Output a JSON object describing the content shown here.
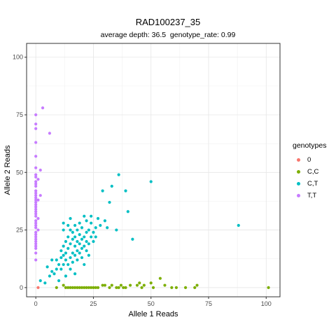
{
  "chart_data": {
    "type": "scatter",
    "title": "RAD100237_35",
    "subtitle": {
      "depth_label": "average depth:",
      "depth_value": "36.5",
      "rate_label": "genotype_rate:",
      "rate_value": "0.99"
    },
    "xlabel": "Allele 1 Reads",
    "ylabel": "Allele 2 Reads",
    "xlim": [
      -4,
      106
    ],
    "ylim": [
      -4,
      106
    ],
    "xticks": [
      0,
      25,
      50,
      75,
      100
    ],
    "yticks": [
      0,
      25,
      50,
      75,
      100
    ],
    "grid": true,
    "legend": {
      "title": "genotypes",
      "position": "right"
    },
    "series": [
      {
        "name": "0",
        "color": "#F8766D",
        "points": [
          [
            1,
            0
          ]
        ]
      },
      {
        "name": "C,C",
        "color": "#7CAE00",
        "points": [
          [
            9,
            0
          ],
          [
            12,
            1
          ],
          [
            13,
            0
          ],
          [
            14,
            0
          ],
          [
            15,
            0
          ],
          [
            16,
            0
          ],
          [
            17,
            0
          ],
          [
            18,
            0
          ],
          [
            19,
            0
          ],
          [
            20,
            0
          ],
          [
            21,
            0
          ],
          [
            22,
            0
          ],
          [
            23,
            0
          ],
          [
            24,
            0
          ],
          [
            25,
            0
          ],
          [
            26,
            0
          ],
          [
            27,
            0
          ],
          [
            29,
            1
          ],
          [
            30,
            1
          ],
          [
            32,
            0
          ],
          [
            33,
            1
          ],
          [
            35,
            0
          ],
          [
            36,
            0
          ],
          [
            37,
            1
          ],
          [
            38,
            0
          ],
          [
            39,
            0
          ],
          [
            41,
            1
          ],
          [
            44,
            1
          ],
          [
            45,
            2
          ],
          [
            46,
            0
          ],
          [
            47,
            1
          ],
          [
            50,
            2
          ],
          [
            51,
            0
          ],
          [
            54,
            4
          ],
          [
            56,
            1
          ],
          [
            59,
            0
          ],
          [
            61,
            0
          ],
          [
            65,
            0
          ],
          [
            69,
            0
          ],
          [
            70,
            1
          ],
          [
            101,
            0
          ]
        ]
      },
      {
        "name": "C,T",
        "color": "#00BFC4",
        "points": [
          [
            2,
            3
          ],
          [
            4,
            2
          ],
          [
            5,
            9
          ],
          [
            6,
            5
          ],
          [
            7,
            7
          ],
          [
            7,
            12
          ],
          [
            8,
            6
          ],
          [
            9,
            8
          ],
          [
            9,
            12
          ],
          [
            10,
            10
          ],
          [
            10,
            3
          ],
          [
            11,
            8
          ],
          [
            11,
            13
          ],
          [
            11,
            16
          ],
          [
            12,
            10
          ],
          [
            12,
            14
          ],
          [
            12,
            18
          ],
          [
            12,
            25
          ],
          [
            12,
            28
          ],
          [
            13,
            12
          ],
          [
            13,
            15
          ],
          [
            13,
            20
          ],
          [
            13,
            5
          ],
          [
            14,
            10
          ],
          [
            14,
            17
          ],
          [
            14,
            22
          ],
          [
            14,
            27
          ],
          [
            15,
            8
          ],
          [
            15,
            13
          ],
          [
            15,
            19
          ],
          [
            15,
            25
          ],
          [
            15,
            30
          ],
          [
            16,
            11
          ],
          [
            16,
            15
          ],
          [
            16,
            21
          ],
          [
            16,
            24
          ],
          [
            17,
            14
          ],
          [
            17,
            18
          ],
          [
            17,
            22
          ],
          [
            17,
            27
          ],
          [
            17,
            6
          ],
          [
            18,
            12
          ],
          [
            18,
            16
          ],
          [
            18,
            20
          ],
          [
            18,
            25
          ],
          [
            19,
            15
          ],
          [
            19,
            19
          ],
          [
            19,
            23
          ],
          [
            19,
            28
          ],
          [
            20,
            13
          ],
          [
            20,
            17
          ],
          [
            20,
            21
          ],
          [
            20,
            26
          ],
          [
            21,
            18
          ],
          [
            21,
            22
          ],
          [
            21,
            31
          ],
          [
            21,
            10
          ],
          [
            22,
            16
          ],
          [
            22,
            20
          ],
          [
            22,
            24
          ],
          [
            22,
            29
          ],
          [
            23,
            19
          ],
          [
            23,
            25
          ],
          [
            23,
            14
          ],
          [
            24,
            22
          ],
          [
            24,
            28
          ],
          [
            24,
            31
          ],
          [
            25,
            20
          ],
          [
            25,
            24
          ],
          [
            26,
            26
          ],
          [
            26,
            22
          ],
          [
            27,
            30
          ],
          [
            28,
            27
          ],
          [
            29,
            42
          ],
          [
            30,
            29
          ],
          [
            31,
            26
          ],
          [
            32,
            37
          ],
          [
            33,
            44
          ],
          [
            35,
            25
          ],
          [
            36,
            49
          ],
          [
            39,
            42
          ],
          [
            40,
            33
          ],
          [
            42,
            21
          ],
          [
            50,
            46
          ],
          [
            88,
            27
          ]
        ]
      },
      {
        "name": "T,T",
        "color": "#C77CFF",
        "points": [
          [
            0,
            12
          ],
          [
            0,
            15
          ],
          [
            0,
            17
          ],
          [
            0,
            18
          ],
          [
            0,
            19
          ],
          [
            0,
            20
          ],
          [
            0,
            21
          ],
          [
            0,
            22
          ],
          [
            0,
            23
          ],
          [
            0,
            24
          ],
          [
            0,
            26
          ],
          [
            0,
            27
          ],
          [
            0,
            28
          ],
          [
            0,
            29
          ],
          [
            0,
            31
          ],
          [
            0,
            32
          ],
          [
            0,
            33
          ],
          [
            0,
            34
          ],
          [
            0,
            35
          ],
          [
            0,
            36
          ],
          [
            0,
            37
          ],
          [
            0,
            38
          ],
          [
            0,
            39
          ],
          [
            0,
            40
          ],
          [
            0,
            41
          ],
          [
            0,
            42
          ],
          [
            0,
            44
          ],
          [
            0,
            45
          ],
          [
            0,
            46
          ],
          [
            0,
            48
          ],
          [
            0,
            49
          ],
          [
            0,
            52
          ],
          [
            0,
            57
          ],
          [
            0,
            63
          ],
          [
            0,
            69
          ],
          [
            0,
            71
          ],
          [
            0,
            75
          ],
          [
            1,
            30
          ],
          [
            1,
            38
          ],
          [
            1,
            47
          ],
          [
            1,
            25
          ],
          [
            2,
            51
          ],
          [
            2,
            40
          ],
          [
            3,
            78
          ],
          [
            6,
            67
          ]
        ]
      }
    ]
  }
}
